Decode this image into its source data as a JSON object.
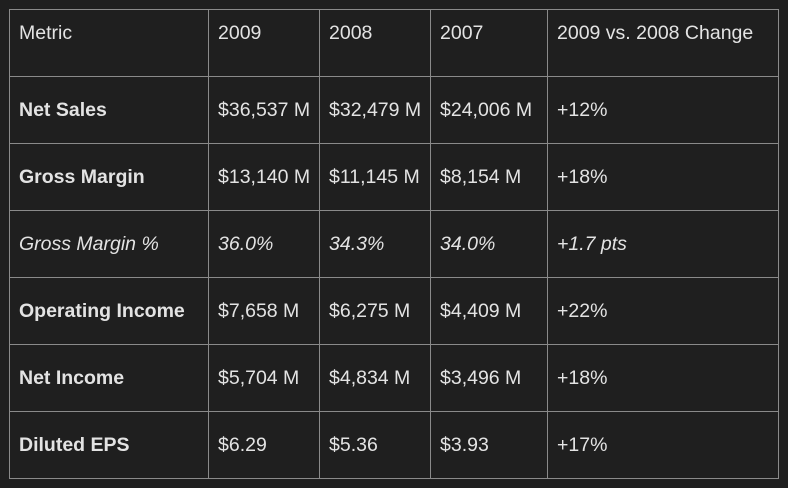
{
  "table": {
    "headers": [
      "Metric",
      "2009",
      "2008",
      "2007",
      "2009 vs. 2008 Change"
    ],
    "rows": [
      {
        "metric": "Net Sales",
        "y2009": "$36,537 M",
        "y2008": "$32,479 M",
        "y2007": "$24,006 M",
        "change": "+12%"
      },
      {
        "metric": "Gross Margin",
        "y2009": "$13,140 M",
        "y2008": "$11,145 M",
        "y2007": "$8,154 M",
        "change": "+18%"
      },
      {
        "metric": "Gross Margin %",
        "y2009": "36.0%",
        "y2008": "34.3%",
        "y2007": "34.0%",
        "change": "+1.7 pts"
      },
      {
        "metric": "Operating Income",
        "y2009": "$7,658 M",
        "y2008": "$6,275 M",
        "y2007": "$4,409 M",
        "change": "+22%"
      },
      {
        "metric": "Net Income",
        "y2009": "$5,704 M",
        "y2008": "$4,834 M",
        "y2007": "$3,496 M",
        "change": "+18%"
      },
      {
        "metric": "Diluted EPS",
        "y2009": "$6.29",
        "y2008": "$5.36",
        "y2007": "$3.93",
        "change": "+17%"
      }
    ]
  },
  "colors": {
    "background": "#1f1f1f",
    "text": "#e3e3e3",
    "border": "#8a8a8a"
  }
}
